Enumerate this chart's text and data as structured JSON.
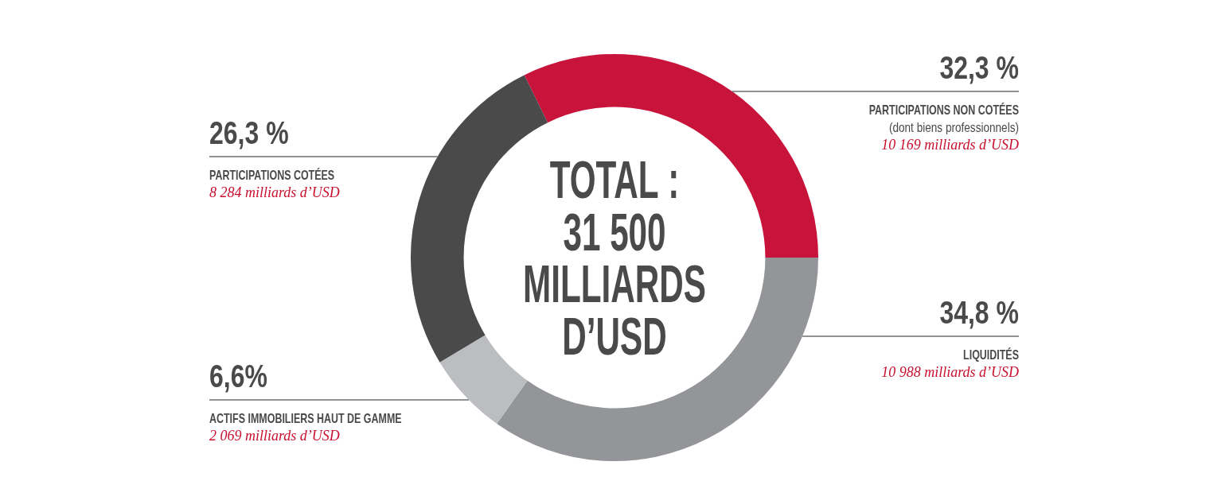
{
  "chart_data": {
    "type": "donut",
    "title": "TOTAL : 31 500 MILLIARDS D’USD",
    "categories": [
      "PARTICIPATIONS NON COTÉES (dont biens professionnels)",
      "LIQUIDITÉS",
      "ACTIFS IMMOBILIERS HAUT DE GAMME",
      "PARTICIPATIONS COTÉES"
    ],
    "values": [
      32.3,
      34.8,
      6.6,
      26.3
    ],
    "colors": [
      "#c8133b",
      "#939598",
      "#bcbdc0",
      "#4a4a4a"
    ],
    "value_labels": [
      "32,3 %",
      "34,8 %",
      "6,6%",
      "26,3 %"
    ],
    "annotations": [
      "10 169 milliards d’USD",
      "10 988 milliards d’USD",
      "2 069 milliards d’USD",
      "8 284 milliards d’USD"
    ]
  }
}
